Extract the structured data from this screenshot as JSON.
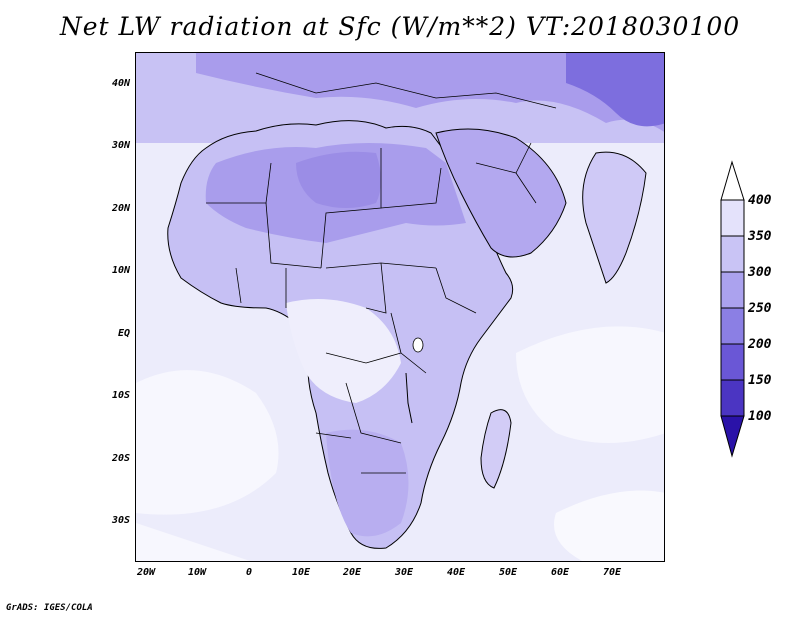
{
  "title": "Net LW radiation at Sfc (W/m**2) VT:2018030100",
  "footer": "GrADS: IGES/COLA",
  "map": {
    "region": "Africa",
    "projection": "lat-lon",
    "lon_range": [
      -22,
      80
    ],
    "lat_range": [
      -37,
      45
    ]
  },
  "axes": {
    "x_ticks": [
      "20W",
      "10W",
      "0",
      "10E",
      "20E",
      "30E",
      "40E",
      "50E",
      "60E",
      "70E"
    ],
    "y_ticks": [
      "40N",
      "30N",
      "20N",
      "10N",
      "EQ",
      "10S",
      "20S",
      "30S"
    ]
  },
  "colorbar": {
    "labels": [
      "400",
      "350",
      "300",
      "250",
      "200",
      "150",
      "100"
    ],
    "colors": [
      "#ffffff",
      "#e4e2fb",
      "#c9c4f5",
      "#aba2ee",
      "#8b7fe4",
      "#6a57d6",
      "#4b35c2",
      "#2a12a8"
    ]
  },
  "colors": {
    "ocean": "#e8e6fb",
    "land_dry": "#a99eec",
    "land_mid": "#c4bdf3",
    "land_wet": "#f3f2fd",
    "borders": "#000000"
  }
}
